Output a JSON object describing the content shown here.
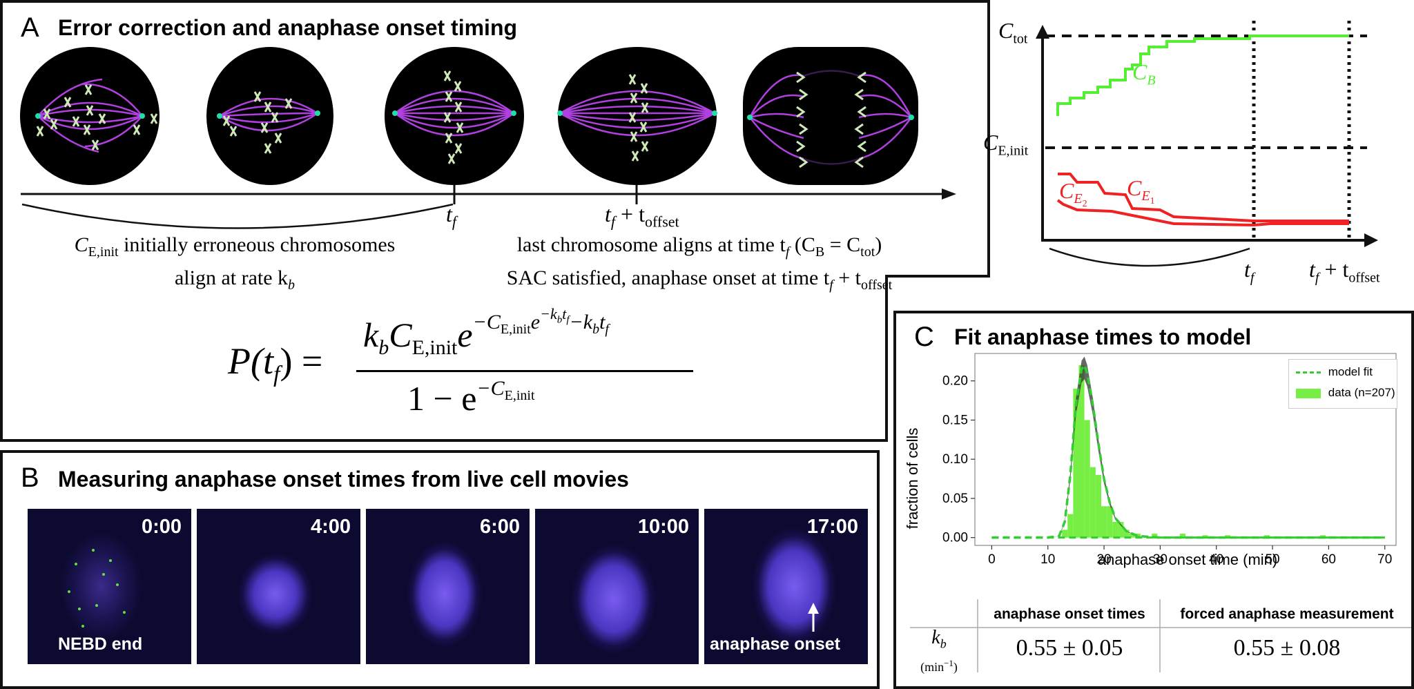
{
  "panel_a": {
    "letter": "A",
    "title": "Error correction and anaphase onset timing",
    "tick_tf": "t",
    "tick_tf_sub": "f",
    "tick_offset": "t",
    "tick_offset_sub": "f",
    "tick_offset_plus": " + t",
    "tick_offset_sub2": "offset",
    "left_caption_1_pre": "C",
    "left_caption_1_sub": "E,init",
    "left_caption_1_post": " initially erroneous chromosomes",
    "left_caption_2_pre": "align at rate k",
    "left_caption_2_sub": "b",
    "right_caption_1_pre": "last chromosome aligns at time t",
    "right_caption_1_sub": "f",
    "right_caption_1_mid": " (C",
    "right_caption_1_sub2": "B",
    "right_caption_1_mid2": " = C",
    "right_caption_1_sub3": "tot",
    "right_caption_1_end": ")",
    "right_caption_2_pre": "SAC satisfied, anaphase onset at time t",
    "right_caption_2_sub": "f",
    "right_caption_2_mid": " + t",
    "right_caption_2_sub2": "offset",
    "equation_lhs": "P(t",
    "equation_lhs_sub": "f",
    "equation_lhs_end": ") =",
    "equation_num_k": "k",
    "equation_num_k_sub": "b",
    "equation_num_c": "C",
    "equation_num_c_sub": "E,init",
    "equation_num_e": "e",
    "equation_num_exp": "−C",
    "equation_num_exp_sub": "E,init",
    "equation_num_exp_e": "e",
    "equation_num_exp2": "−k",
    "equation_num_exp2_sub": "b",
    "equation_num_exp2_t": "t",
    "equation_num_exp2_tsub": "f",
    "equation_num_exp3": "−k",
    "equation_num_exp3_sub": "b",
    "equation_num_exp3_t": "t",
    "equation_num_exp3_tsub": "f",
    "equation_den": "1 − e",
    "equation_den_exp": "−C",
    "equation_den_exp_sub": "E,init"
  },
  "panel_a_graph": {
    "ctot": "C",
    "ctot_sub": "tot",
    "ceinit": "C",
    "ceinit_sub": "E,init",
    "cb": "C",
    "cb_sub": "B",
    "ce2": "C",
    "ce2_sub": "E",
    "ce2_subsub": "2",
    "ce1": "C",
    "ce1_sub": "E",
    "ce1_subsub": "1",
    "tf": "t",
    "tf_sub": "f",
    "tfo": "t",
    "tfo_sub": "f",
    "tfo_plus": " + t",
    "tfo_sub2": "offset",
    "green": "#55ee33",
    "red": "#ee2222"
  },
  "panel_b": {
    "letter": "B",
    "title": "Measuring anaphase onset times from live cell movies",
    "frames": [
      {
        "time": "0:00",
        "label": "NEBD end"
      },
      {
        "time": "4:00",
        "label": ""
      },
      {
        "time": "6:00",
        "label": ""
      },
      {
        "time": "10:00",
        "label": ""
      },
      {
        "time": "17:00",
        "label": "anaphase onset"
      }
    ]
  },
  "panel_c": {
    "letter": "C",
    "title": "Fit anaphase times to model",
    "chart_data": {
      "type": "bar",
      "xlabel": "anaphase onset time (min)",
      "ylabel": "fraction of cells",
      "xlim": [
        -3,
        72
      ],
      "ylim": [
        -0.01,
        0.235
      ],
      "xticks": [
        0,
        10,
        20,
        30,
        40,
        50,
        60,
        70
      ],
      "yticks": [
        0.0,
        0.05,
        0.1,
        0.15,
        0.2
      ],
      "ytick_labels": [
        "0.00",
        "0.05",
        "0.10",
        "0.15",
        "0.20"
      ],
      "legend_position": "top-right",
      "series": [
        {
          "name": "data (n=207)",
          "kind": "histogram",
          "color": "#77ee44",
          "x": [
            13,
            14,
            15,
            16,
            17,
            18,
            19,
            20,
            21,
            22,
            23,
            24,
            25,
            26,
            29,
            34,
            38,
            42,
            49,
            59
          ],
          "values": [
            0.01,
            0.03,
            0.19,
            0.22,
            0.15,
            0.09,
            0.08,
            0.04,
            0.04,
            0.02,
            0.02,
            0.01,
            0.005,
            0.005,
            0.005,
            0.005,
            0.003,
            0.003,
            0.003,
            0.003
          ]
        },
        {
          "name": "model fit",
          "kind": "line",
          "style": "dashed",
          "color": "#33cc33",
          "x": [
            0,
            10,
            12,
            13,
            14,
            15,
            16,
            16.5,
            17,
            18,
            19,
            20,
            21,
            22,
            24,
            26,
            30,
            70
          ],
          "values": [
            0,
            0,
            0.002,
            0.02,
            0.08,
            0.17,
            0.215,
            0.22,
            0.21,
            0.17,
            0.12,
            0.075,
            0.045,
            0.025,
            0.008,
            0.002,
            0,
            0
          ]
        }
      ]
    },
    "table": {
      "col1": "anaphase onset times",
      "col2": "forced anaphase measurement",
      "row_label": "k",
      "row_label_sub": "b",
      "row_unit": "(min",
      "row_unit_sup": "−1",
      "row_unit_end": ")",
      "val1": "0.55 ± 0.05",
      "val2": "0.55 ± 0.08"
    }
  }
}
